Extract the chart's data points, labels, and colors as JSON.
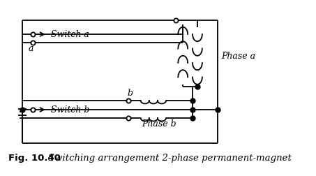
{
  "fig_width": 4.53,
  "fig_height": 2.53,
  "dpi": 100,
  "bg_color": "#ffffff",
  "line_color": "#000000",
  "line_width": 1.3,
  "caption_bold": "Fig. 10.40",
  "caption_italic": "Switching arrangement 2-phase permanent-magnet",
  "caption_fontsize": 9.5,
  "label_fontsize": 9,
  "switch_label_a": "Switch a",
  "switch_label_b": "Switch b",
  "label_a": "a",
  "label_b": "b",
  "phase_a_label": "Phase a",
  "phase_b_label": "Phase b"
}
